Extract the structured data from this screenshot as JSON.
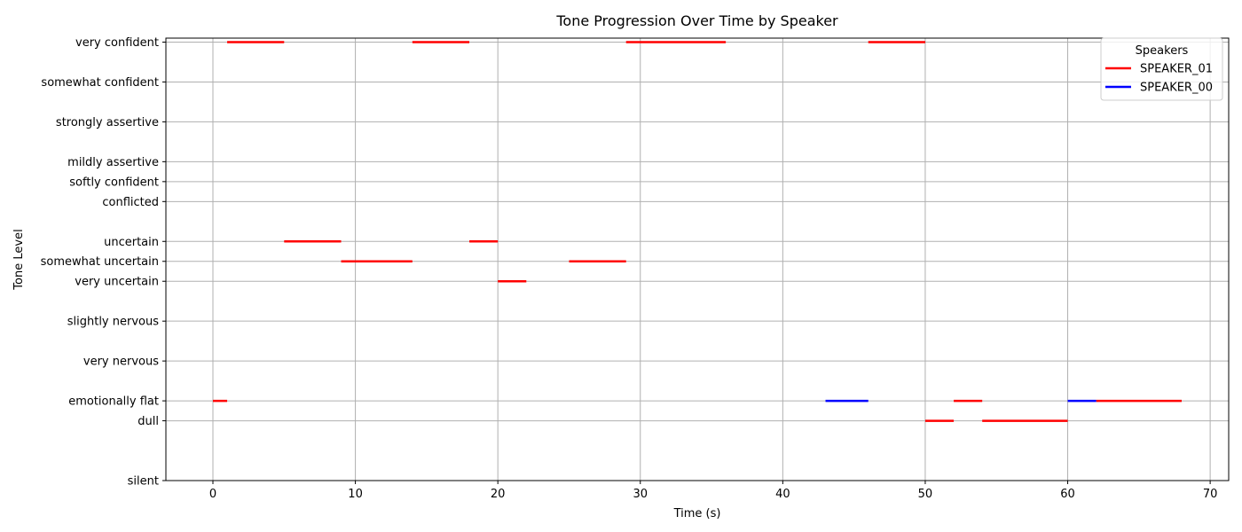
{
  "chart_data": {
    "type": "line",
    "title": "Tone Progression Over Time by Speaker",
    "xlabel": "Time (s)",
    "ylabel": "Tone Level",
    "xlim": [
      -3.3,
      71.3
    ],
    "ylim": [
      -1.0,
      10.1
    ],
    "xticks": [
      0,
      10,
      20,
      30,
      40,
      50,
      60,
      70
    ],
    "grid": true,
    "levels": [
      {
        "label": "silent",
        "value": -1.0
      },
      {
        "label": "dull",
        "value": 0.5
      },
      {
        "label": "emotionally flat",
        "value": 1.0
      },
      {
        "label": "very nervous",
        "value": 2.0
      },
      {
        "label": "slightly nervous",
        "value": 3.0
      },
      {
        "label": "very uncertain",
        "value": 4.0
      },
      {
        "label": "somewhat uncertain",
        "value": 4.5
      },
      {
        "label": "uncertain",
        "value": 5.0
      },
      {
        "label": "conflicted",
        "value": 6.0
      },
      {
        "label": "softly confident",
        "value": 6.5
      },
      {
        "label": "mildly assertive",
        "value": 7.0
      },
      {
        "label": "strongly assertive",
        "value": 8.0
      },
      {
        "label": "somewhat confident",
        "value": 9.0
      },
      {
        "label": "very confident",
        "value": 10.0
      }
    ],
    "legend": {
      "title": "Speakers",
      "placement": "top-right"
    },
    "series": [
      {
        "name": "SPEAKER_01",
        "color": "#ff0000",
        "segments": [
          {
            "start": 0,
            "end": 1,
            "level": "emotionally flat"
          },
          {
            "start": 1,
            "end": 5,
            "level": "very confident"
          },
          {
            "start": 5,
            "end": 9,
            "level": "uncertain"
          },
          {
            "start": 9,
            "end": 14,
            "level": "somewhat uncertain"
          },
          {
            "start": 14,
            "end": 18,
            "level": "very confident"
          },
          {
            "start": 18,
            "end": 20,
            "level": "uncertain"
          },
          {
            "start": 20,
            "end": 22,
            "level": "very uncertain"
          },
          {
            "start": 25,
            "end": 29,
            "level": "somewhat uncertain"
          },
          {
            "start": 29,
            "end": 36,
            "level": "very confident"
          },
          {
            "start": 46,
            "end": 50,
            "level": "very confident"
          },
          {
            "start": 50,
            "end": 52,
            "level": "dull"
          },
          {
            "start": 52,
            "end": 54,
            "level": "emotionally flat"
          },
          {
            "start": 54,
            "end": 60,
            "level": "dull"
          },
          {
            "start": 62,
            "end": 68,
            "level": "emotionally flat"
          }
        ]
      },
      {
        "name": "SPEAKER_00",
        "color": "#0000ff",
        "segments": [
          {
            "start": 43,
            "end": 46,
            "level": "emotionally flat"
          },
          {
            "start": 60,
            "end": 62,
            "level": "emotionally flat"
          }
        ]
      }
    ]
  }
}
